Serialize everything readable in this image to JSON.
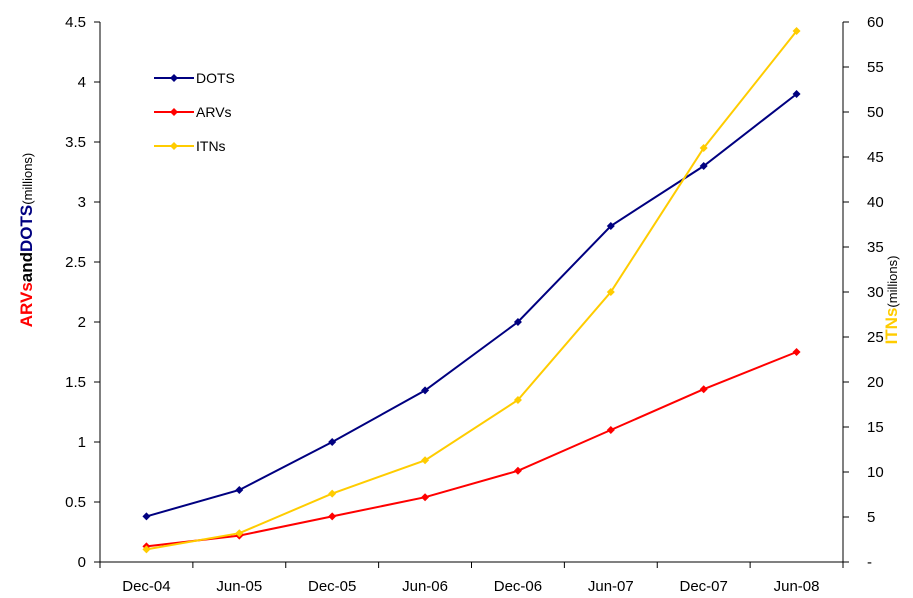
{
  "chart_data": {
    "type": "line",
    "categories": [
      "Dec-04",
      "Jun-05",
      "Dec-05",
      "Jun-06",
      "Dec-06",
      "Jun-07",
      "Dec-07",
      "Jun-08"
    ],
    "y_left": {
      "label_parts": [
        {
          "text": "ARVs",
          "color": "#ff0000"
        },
        {
          "text": "and",
          "color": "#000000"
        },
        {
          "text": "DOTS",
          "color": "#000080"
        },
        {
          "text": "(millions)",
          "color": "#000000"
        }
      ],
      "ylim": [
        0,
        4.5
      ],
      "ticks": [
        "0",
        "0.5",
        "1",
        "1.5",
        "2",
        "2.5",
        "3",
        "3.5",
        "4",
        "4.5"
      ]
    },
    "y_right": {
      "label_parts": [
        {
          "text": "ITNs",
          "color": "#ffcc00"
        },
        {
          "text": "(millions)",
          "color": "#000000"
        }
      ],
      "ylim": [
        0,
        60
      ],
      "ticks": [
        "-",
        "5",
        "10",
        "15",
        "20",
        "25",
        "30",
        "35",
        "40",
        "45",
        "50",
        "55",
        "60"
      ]
    },
    "series": [
      {
        "name": "DOTS",
        "axis": "left",
        "color": "#000080",
        "values": [
          0.38,
          0.6,
          1.0,
          1.43,
          2.0,
          2.8,
          3.3,
          3.9
        ]
      },
      {
        "name": "ARVs",
        "axis": "left",
        "color": "#ff0000",
        "values": [
          0.13,
          0.22,
          0.38,
          0.54,
          0.76,
          1.1,
          1.44,
          1.75
        ]
      },
      {
        "name": "ITNs",
        "axis": "right",
        "color": "#ffcc00",
        "values": [
          1.4,
          3.2,
          7.6,
          11.3,
          18.0,
          30.0,
          46.0,
          59.0
        ]
      }
    ],
    "legend_position": "top-left",
    "grid": false
  }
}
